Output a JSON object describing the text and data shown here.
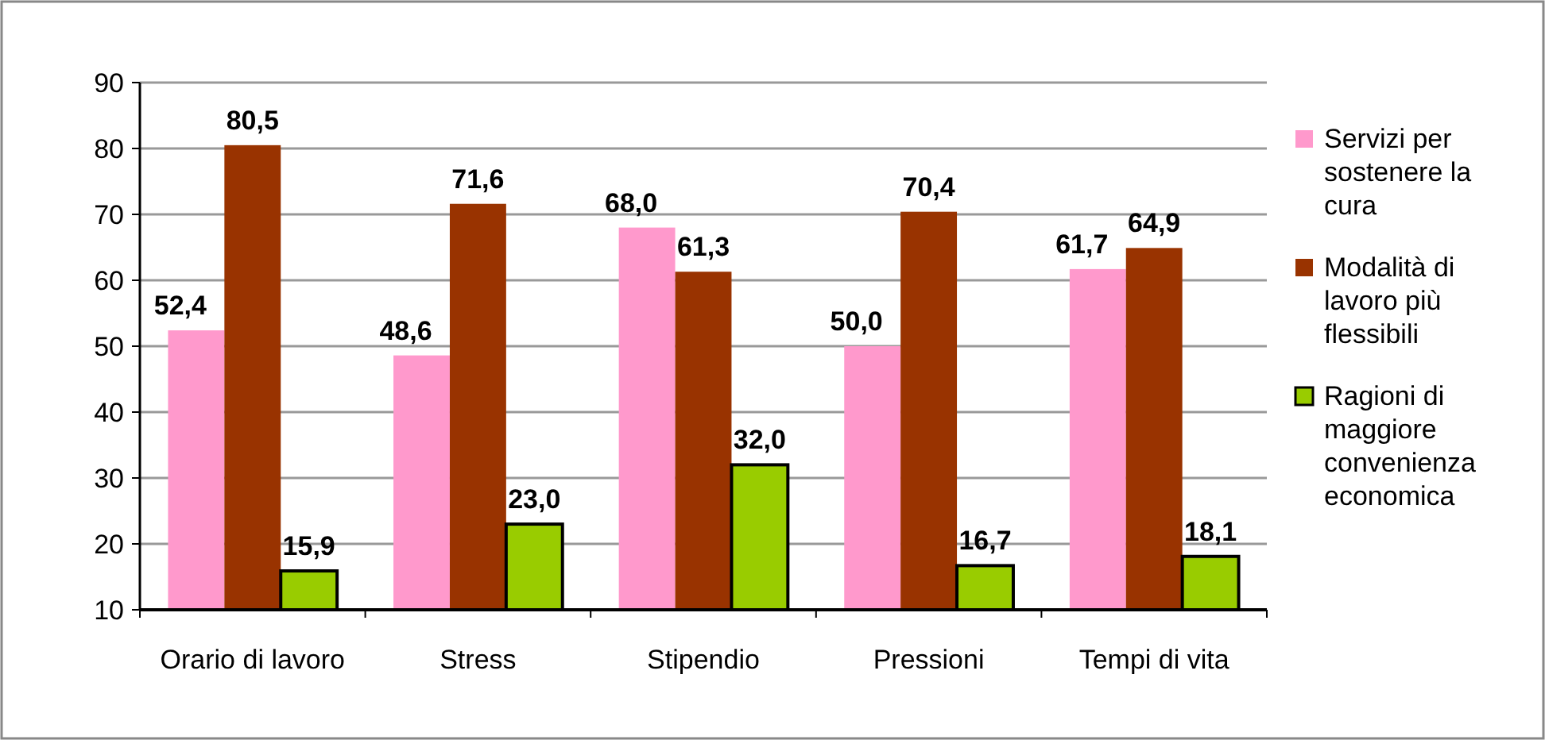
{
  "chart_data": {
    "type": "bar",
    "categories": [
      "Orario di lavoro",
      "Stress",
      "Stipendio",
      "Pressioni",
      "Tempi di vita"
    ],
    "series": [
      {
        "name": "Servizi per sostenere la cura",
        "color": "#ff99cc",
        "values": [
          52.4,
          48.6,
          68.0,
          50.0,
          61.7
        ],
        "value_labels": [
          "52,4",
          "48,6",
          "68,0",
          "50,0",
          "61,7"
        ]
      },
      {
        "name": "Modalità di lavoro più flessibili",
        "color": "#993300",
        "values": [
          80.5,
          71.6,
          61.3,
          70.4,
          64.9
        ],
        "value_labels": [
          "80,5",
          "71,6",
          "61,3",
          "70,4",
          "64,9"
        ]
      },
      {
        "name": "Ragioni di maggiore convenienza economica",
        "color": "#99cc00",
        "values": [
          15.9,
          23.0,
          32.0,
          16.7,
          18.1
        ],
        "value_labels": [
          "15,9",
          "23,0",
          "32,0",
          "16,7",
          "18,1"
        ]
      }
    ],
    "ylim": [
      10,
      90
    ],
    "yticks": [
      10,
      20,
      30,
      40,
      50,
      60,
      70,
      80,
      90
    ],
    "grid": "y",
    "legend": "right"
  }
}
